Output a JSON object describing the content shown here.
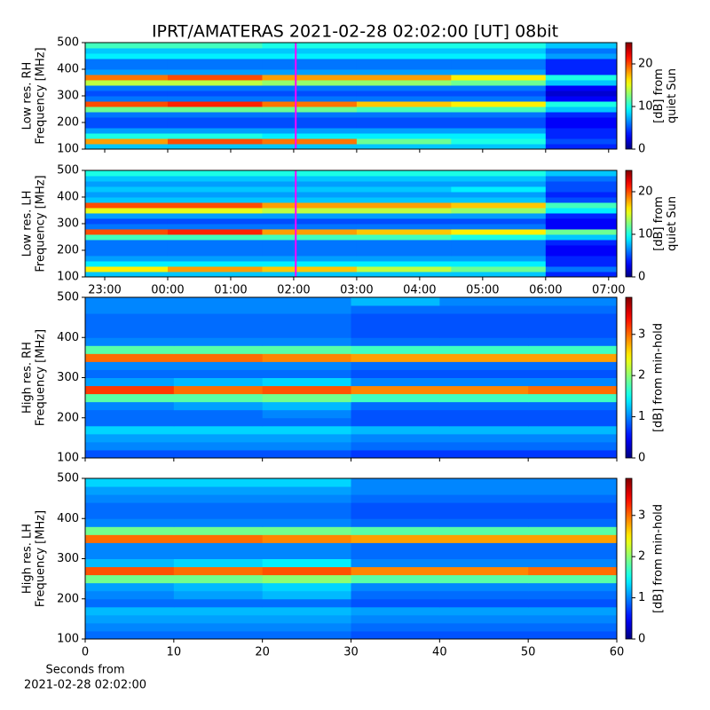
{
  "title": "IPRT/AMATERAS 2021-02-28 02:02:00 [UT]   08bit",
  "chart_data": [
    {
      "type": "heatmap",
      "ylabel": [
        "Low res. RH",
        "Frequency [MHz]"
      ],
      "xlim": [
        -1.31,
        7.13
      ],
      "xticks": [
        {
          "value": -1,
          "label": "23:00"
        },
        {
          "value": 0,
          "label": "00:00"
        },
        {
          "value": 1,
          "label": "01:00"
        },
        {
          "value": 2,
          "label": "02:00"
        },
        {
          "value": 3,
          "label": "03:00"
        },
        {
          "value": 4,
          "label": "04:00"
        },
        {
          "value": 5,
          "label": "05:00"
        },
        {
          "value": 6,
          "label": "06:00"
        },
        {
          "value": 7,
          "label": "07:00"
        }
      ],
      "show_xtick_labels": false,
      "ylim": [
        100,
        500
      ],
      "yticks": [
        100,
        200,
        300,
        400,
        500
      ],
      "clim": [
        0,
        25
      ],
      "cticks": [
        0,
        10,
        20
      ],
      "clabel": [
        "[dB] from",
        "quiet Sun"
      ],
      "colormap": "jet",
      "marker": {
        "x": 2.033,
        "color": "#ff00ff"
      },
      "xbins": [
        -1.31,
        0,
        1.5,
        3,
        4.5,
        6,
        7.13
      ],
      "ybins": [
        100,
        120,
        140,
        160,
        180,
        200,
        220,
        240,
        260,
        280,
        300,
        320,
        340,
        360,
        380,
        400,
        420,
        440,
        460,
        480,
        500
      ],
      "z": [
        [
          8,
          8,
          8,
          8,
          8,
          4
        ],
        [
          18,
          20,
          19,
          12,
          10,
          5
        ],
        [
          10,
          10,
          9,
          9,
          9,
          4
        ],
        [
          7,
          7,
          7,
          7,
          7,
          4
        ],
        [
          5,
          5,
          5,
          5,
          5,
          3
        ],
        [
          5,
          5,
          5,
          5,
          5,
          3
        ],
        [
          6,
          6,
          6,
          6,
          6,
          4
        ],
        [
          12,
          12,
          12,
          11,
          11,
          8
        ],
        [
          20,
          21,
          19,
          17,
          16,
          10
        ],
        [
          6,
          6,
          6,
          6,
          6,
          3
        ],
        [
          5,
          5,
          5,
          5,
          5,
          2
        ],
        [
          6,
          6,
          6,
          6,
          6,
          3
        ],
        [
          14,
          14,
          13,
          13,
          12,
          8
        ],
        [
          19,
          20,
          18,
          18,
          16,
          10
        ],
        [
          7,
          7,
          7,
          7,
          7,
          4
        ],
        [
          6,
          6,
          6,
          6,
          6,
          4
        ],
        [
          6,
          6,
          6,
          6,
          6,
          4
        ],
        [
          9,
          9,
          9,
          9,
          9,
          7
        ],
        [
          8,
          8,
          8,
          8,
          8,
          6
        ],
        [
          11,
          11,
          10,
          10,
          10,
          8
        ]
      ]
    },
    {
      "type": "heatmap",
      "ylabel": [
        "Low res. LH",
        "Frequency [MHz]"
      ],
      "xlim": [
        -1.31,
        7.13
      ],
      "xticks": [
        {
          "value": -1,
          "label": "23:00"
        },
        {
          "value": 0,
          "label": "00:00"
        },
        {
          "value": 1,
          "label": "01:00"
        },
        {
          "value": 2,
          "label": "02:00"
        },
        {
          "value": 3,
          "label": "03:00"
        },
        {
          "value": 4,
          "label": "04:00"
        },
        {
          "value": 5,
          "label": "05:00"
        },
        {
          "value": 6,
          "label": "06:00"
        },
        {
          "value": 7,
          "label": "07:00"
        }
      ],
      "show_xtick_labels": true,
      "ylim": [
        100,
        500
      ],
      "yticks": [
        100,
        200,
        300,
        400,
        500
      ],
      "clim": [
        0,
        25
      ],
      "cticks": [
        0,
        10,
        20
      ],
      "clabel": [
        "[dB] from",
        "quiet Sun"
      ],
      "colormap": "jet",
      "marker": {
        "x": 2.033,
        "color": "#ff00ff"
      },
      "xbins": [
        -1.31,
        0,
        1.5,
        3,
        4.5,
        6,
        7.13
      ],
      "ybins": [
        100,
        120,
        140,
        160,
        180,
        200,
        220,
        240,
        260,
        280,
        300,
        320,
        340,
        360,
        380,
        400,
        420,
        440,
        460,
        480,
        500
      ],
      "z": [
        [
          8,
          8,
          8,
          8,
          8,
          4
        ],
        [
          16,
          18,
          17,
          14,
          12,
          6
        ],
        [
          9,
          9,
          9,
          9,
          9,
          4
        ],
        [
          7,
          7,
          7,
          7,
          7,
          4
        ],
        [
          6,
          6,
          6,
          6,
          6,
          3
        ],
        [
          6,
          6,
          6,
          6,
          6,
          3
        ],
        [
          6,
          6,
          6,
          6,
          6,
          4
        ],
        [
          11,
          11,
          11,
          11,
          10,
          8
        ],
        [
          20,
          21,
          18,
          17,
          16,
          12
        ],
        [
          6,
          6,
          6,
          6,
          6,
          3
        ],
        [
          5,
          5,
          5,
          5,
          5,
          3
        ],
        [
          7,
          7,
          7,
          7,
          7,
          4
        ],
        [
          15,
          15,
          14,
          14,
          13,
          9
        ],
        [
          20,
          20,
          18,
          18,
          17,
          11
        ],
        [
          8,
          8,
          8,
          8,
          8,
          5
        ],
        [
          7,
          7,
          7,
          7,
          7,
          4
        ],
        [
          8,
          8,
          8,
          8,
          9,
          5
        ],
        [
          7,
          7,
          7,
          7,
          7,
          5
        ],
        [
          8,
          8,
          8,
          8,
          8,
          6
        ],
        [
          10,
          10,
          10,
          10,
          10,
          8
        ]
      ]
    },
    {
      "type": "heatmap",
      "ylabel": [
        "High res. RH",
        "Frequency [MHz]"
      ],
      "xlim": [
        0,
        60
      ],
      "xticks": [
        0,
        10,
        20,
        30,
        40,
        50,
        60
      ],
      "show_xtick_labels": false,
      "ylim": [
        100,
        500
      ],
      "yticks": [
        100,
        200,
        300,
        400,
        500
      ],
      "clim": [
        0,
        3.9
      ],
      "cticks": [
        0,
        1,
        2,
        3
      ],
      "clabel": [
        "[dB] from min-hold"
      ],
      "colormap": "jet",
      "xbins": [
        0,
        10,
        20,
        30,
        40,
        50,
        60
      ],
      "ybins": [
        100,
        120,
        140,
        160,
        180,
        200,
        220,
        240,
        260,
        280,
        300,
        320,
        340,
        360,
        380,
        400,
        420,
        440,
        460,
        480,
        500
      ],
      "z": [
        [
          0.8,
          0.8,
          0.8,
          0.7,
          0.7,
          0.7
        ],
        [
          1.0,
          1.0,
          1.0,
          0.9,
          0.9,
          0.9
        ],
        [
          1.1,
          1.1,
          1.1,
          1.0,
          1.0,
          1.0
        ],
        [
          1.3,
          1.3,
          1.3,
          1.2,
          1.2,
          1.2
        ],
        [
          0.9,
          0.9,
          0.9,
          0.8,
          0.8,
          0.8
        ],
        [
          0.9,
          0.9,
          1.0,
          0.8,
          0.8,
          0.8
        ],
        [
          1.0,
          1.1,
          1.2,
          0.9,
          0.9,
          0.9
        ],
        [
          1.8,
          1.8,
          1.9,
          1.7,
          1.7,
          1.7
        ],
        [
          3.2,
          3.0,
          3.1,
          2.9,
          2.9,
          3.0
        ],
        [
          1.1,
          1.2,
          1.3,
          1.0,
          1.0,
          1.0
        ],
        [
          0.9,
          0.9,
          0.9,
          0.8,
          0.8,
          0.8
        ],
        [
          1.0,
          1.0,
          1.0,
          0.9,
          0.9,
          0.9
        ],
        [
          3.0,
          3.0,
          2.9,
          2.8,
          2.8,
          2.8
        ],
        [
          1.8,
          1.8,
          1.8,
          1.7,
          1.7,
          1.7
        ],
        [
          1.0,
          1.0,
          1.0,
          0.9,
          0.9,
          0.9
        ],
        [
          0.9,
          0.9,
          0.9,
          0.8,
          0.8,
          0.8
        ],
        [
          0.9,
          0.9,
          0.9,
          0.8,
          0.8,
          0.8
        ],
        [
          0.9,
          0.9,
          0.9,
          0.8,
          0.8,
          0.8
        ],
        [
          1.0,
          1.0,
          1.0,
          0.9,
          0.9,
          0.9
        ],
        [
          1.0,
          1.0,
          1.0,
          1.2,
          1.0,
          1.0
        ]
      ]
    },
    {
      "type": "heatmap",
      "ylabel": [
        "High res. LH",
        "Frequency [MHz]"
      ],
      "xlim": [
        0,
        60
      ],
      "xticks": [
        0,
        10,
        20,
        30,
        40,
        50,
        60
      ],
      "show_xtick_labels": true,
      "xlabel": [
        "Seconds from",
        "2021-02-28 02:02:00"
      ],
      "ylim": [
        100,
        500
      ],
      "yticks": [
        100,
        200,
        300,
        400,
        500
      ],
      "clim": [
        0,
        3.9
      ],
      "cticks": [
        0,
        1,
        2,
        3
      ],
      "clabel": [
        "[dB] from min-hold"
      ],
      "colormap": "jet",
      "xbins": [
        0,
        10,
        20,
        30,
        40,
        50,
        60
      ],
      "ybins": [
        100,
        120,
        140,
        160,
        180,
        200,
        220,
        240,
        260,
        280,
        300,
        320,
        340,
        360,
        380,
        400,
        420,
        440,
        460,
        480,
        500
      ],
      "z": [
        [
          0.9,
          0.9,
          0.9,
          0.8,
          0.8,
          0.8
        ],
        [
          1.0,
          1.0,
          1.0,
          0.9,
          0.9,
          0.9
        ],
        [
          1.1,
          1.1,
          1.1,
          1.0,
          1.0,
          1.0
        ],
        [
          1.2,
          1.2,
          1.2,
          1.1,
          1.1,
          1.1
        ],
        [
          0.9,
          0.9,
          0.9,
          0.8,
          0.8,
          0.8
        ],
        [
          1.0,
          1.1,
          1.2,
          0.9,
          0.9,
          0.9
        ],
        [
          1.1,
          1.2,
          1.3,
          1.0,
          1.0,
          1.0
        ],
        [
          1.9,
          1.9,
          2.0,
          1.8,
          1.8,
          1.8
        ],
        [
          3.1,
          3.0,
          3.1,
          2.9,
          2.9,
          3.0
        ],
        [
          1.2,
          1.3,
          1.4,
          1.0,
          1.0,
          1.0
        ],
        [
          1.0,
          1.0,
          1.0,
          0.9,
          0.9,
          0.9
        ],
        [
          1.0,
          1.0,
          1.0,
          0.9,
          0.9,
          0.9
        ],
        [
          3.0,
          3.0,
          2.9,
          2.8,
          2.8,
          2.8
        ],
        [
          1.9,
          1.9,
          1.9,
          1.8,
          1.8,
          1.8
        ],
        [
          1.0,
          1.0,
          1.0,
          0.9,
          0.9,
          0.9
        ],
        [
          0.9,
          0.9,
          0.9,
          0.8,
          0.8,
          0.8
        ],
        [
          0.9,
          0.9,
          0.9,
          0.8,
          0.8,
          0.8
        ],
        [
          1.0,
          1.0,
          1.0,
          0.9,
          0.9,
          0.9
        ],
        [
          1.1,
          1.1,
          1.1,
          1.0,
          1.0,
          1.0
        ],
        [
          1.3,
          1.3,
          1.3,
          1.0,
          1.0,
          1.0
        ]
      ]
    }
  ]
}
